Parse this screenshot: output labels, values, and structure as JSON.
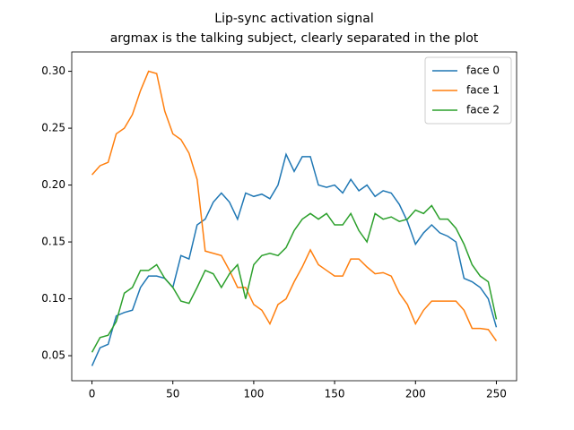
{
  "chart_data": {
    "type": "line",
    "title": "Lip-sync activation signal",
    "subtitle": "argmax is the talking subject, clearly separated in the plot",
    "x": [
      0,
      5,
      10,
      15,
      20,
      25,
      30,
      35,
      40,
      45,
      50,
      55,
      60,
      65,
      70,
      75,
      80,
      85,
      90,
      95,
      100,
      105,
      110,
      115,
      120,
      125,
      130,
      135,
      140,
      145,
      150,
      155,
      160,
      165,
      170,
      175,
      180,
      185,
      190,
      195,
      200,
      205,
      210,
      215,
      220,
      225,
      230,
      235,
      240,
      245,
      250
    ],
    "series": [
      {
        "name": "face 0",
        "color": "#1f77b4",
        "values": [
          0.041,
          0.057,
          0.06,
          0.085,
          0.088,
          0.09,
          0.11,
          0.12,
          0.12,
          0.118,
          0.11,
          0.138,
          0.135,
          0.165,
          0.17,
          0.185,
          0.193,
          0.185,
          0.17,
          0.193,
          0.19,
          0.192,
          0.188,
          0.2,
          0.227,
          0.212,
          0.225,
          0.225,
          0.2,
          0.198,
          0.2,
          0.193,
          0.205,
          0.195,
          0.2,
          0.19,
          0.195,
          0.193,
          0.183,
          0.168,
          0.148,
          0.158,
          0.165,
          0.158,
          0.155,
          0.15,
          0.118,
          0.115,
          0.11,
          0.1,
          0.075
        ]
      },
      {
        "name": "face 1",
        "color": "#ff7f0e",
        "values": [
          0.209,
          0.217,
          0.22,
          0.245,
          0.25,
          0.262,
          0.283,
          0.3,
          0.298,
          0.265,
          0.245,
          0.24,
          0.228,
          0.205,
          0.142,
          0.14,
          0.138,
          0.125,
          0.11,
          0.11,
          0.095,
          0.09,
          0.078,
          0.095,
          0.1,
          0.115,
          0.128,
          0.143,
          0.13,
          0.125,
          0.12,
          0.12,
          0.135,
          0.135,
          0.128,
          0.122,
          0.123,
          0.12,
          0.105,
          0.095,
          0.078,
          0.09,
          0.098,
          0.098,
          0.098,
          0.098,
          0.09,
          0.074,
          0.074,
          0.073,
          0.063
        ]
      },
      {
        "name": "face 2",
        "color": "#2ca02c",
        "values": [
          0.053,
          0.066,
          0.068,
          0.08,
          0.105,
          0.11,
          0.125,
          0.125,
          0.13,
          0.118,
          0.11,
          0.098,
          0.096,
          0.11,
          0.125,
          0.122,
          0.11,
          0.122,
          0.13,
          0.1,
          0.13,
          0.138,
          0.14,
          0.138,
          0.145,
          0.16,
          0.17,
          0.175,
          0.17,
          0.175,
          0.165,
          0.165,
          0.175,
          0.16,
          0.15,
          0.175,
          0.17,
          0.172,
          0.168,
          0.17,
          0.178,
          0.175,
          0.182,
          0.17,
          0.17,
          0.162,
          0.148,
          0.13,
          0.12,
          0.115,
          0.082
        ]
      }
    ],
    "xlim": [
      -12.5,
      262.5
    ],
    "xticks": [
      0,
      50,
      100,
      150,
      200,
      250
    ],
    "ylim": [
      0.028,
      0.317
    ],
    "yticks": [
      0.05,
      {
        "value": 0.1,
        "label": "0.10"
      },
      0.15,
      {
        "value": 0.2,
        "label": "0.20"
      },
      0.25,
      {
        "value": 0.3,
        "label": "0.30"
      }
    ],
    "legend": "upper right"
  }
}
